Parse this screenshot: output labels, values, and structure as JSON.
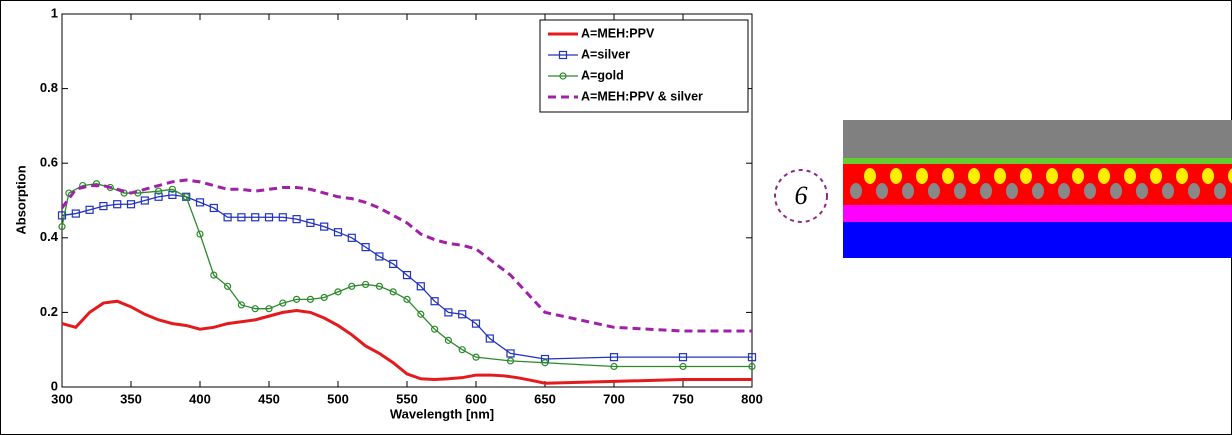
{
  "chart_data": {
    "type": "line",
    "xlabel": "Wavelength [nm]",
    "ylabel": "Absorption",
    "xlim": [
      300,
      800
    ],
    "ylim": [
      0,
      1
    ],
    "xticks": [
      300,
      350,
      400,
      450,
      500,
      550,
      600,
      650,
      700,
      750,
      800
    ],
    "yticks": [
      0,
      0.2,
      0.4,
      0.6,
      0.8,
      1
    ],
    "legend": "upper right",
    "series": [
      {
        "name": "A=MEH:PPV",
        "color": "#e41a1c",
        "style": "solid",
        "marker": "none",
        "x": [
          300,
          310,
          320,
          330,
          340,
          350,
          360,
          370,
          380,
          390,
          400,
          410,
          420,
          430,
          440,
          450,
          460,
          470,
          480,
          490,
          500,
          510,
          520,
          530,
          540,
          550,
          560,
          570,
          580,
          590,
          600,
          610,
          620,
          630,
          640,
          650,
          700,
          750,
          800
        ],
        "values": [
          0.17,
          0.16,
          0.2,
          0.225,
          0.23,
          0.215,
          0.195,
          0.18,
          0.17,
          0.165,
          0.155,
          0.16,
          0.17,
          0.175,
          0.18,
          0.19,
          0.2,
          0.205,
          0.2,
          0.185,
          0.165,
          0.14,
          0.11,
          0.09,
          0.065,
          0.035,
          0.022,
          0.02,
          0.022,
          0.025,
          0.032,
          0.032,
          0.03,
          0.025,
          0.018,
          0.01,
          0.015,
          0.02,
          0.02
        ]
      },
      {
        "name": "A=silver",
        "color": "#2233bb",
        "style": "solid",
        "marker": "square",
        "x": [
          300,
          310,
          320,
          330,
          340,
          350,
          360,
          370,
          380,
          390,
          400,
          410,
          420,
          430,
          440,
          450,
          460,
          470,
          480,
          490,
          500,
          510,
          520,
          530,
          540,
          550,
          560,
          570,
          580,
          590,
          600,
          610,
          625,
          650,
          700,
          750,
          800
        ],
        "values": [
          0.46,
          0.465,
          0.475,
          0.485,
          0.49,
          0.49,
          0.5,
          0.51,
          0.515,
          0.51,
          0.495,
          0.48,
          0.455,
          0.455,
          0.455,
          0.455,
          0.455,
          0.45,
          0.44,
          0.43,
          0.415,
          0.4,
          0.375,
          0.35,
          0.33,
          0.3,
          0.27,
          0.23,
          0.2,
          0.195,
          0.17,
          0.13,
          0.09,
          0.075,
          0.08,
          0.08,
          0.08
        ]
      },
      {
        "name": "A=gold",
        "color": "#2a8a2a",
        "style": "solid",
        "marker": "circle",
        "x": [
          300,
          305,
          315,
          325,
          335,
          345,
          355,
          370,
          380,
          390,
          400,
          410,
          420,
          430,
          440,
          450,
          460,
          470,
          480,
          490,
          500,
          510,
          520,
          530,
          540,
          550,
          560,
          570,
          580,
          590,
          600,
          625,
          650,
          700,
          750,
          800
        ],
        "values": [
          0.43,
          0.52,
          0.54,
          0.545,
          0.535,
          0.52,
          0.52,
          0.525,
          0.53,
          0.51,
          0.41,
          0.3,
          0.27,
          0.22,
          0.21,
          0.21,
          0.225,
          0.235,
          0.235,
          0.24,
          0.255,
          0.27,
          0.275,
          0.27,
          0.255,
          0.235,
          0.195,
          0.155,
          0.125,
          0.1,
          0.08,
          0.07,
          0.065,
          0.055,
          0.055,
          0.055
        ]
      },
      {
        "name": "A=MEH:PPV & silver",
        "color": "#a020a8",
        "style": "dashed",
        "marker": "none",
        "x": [
          300,
          310,
          320,
          330,
          340,
          350,
          360,
          370,
          380,
          390,
          400,
          410,
          420,
          430,
          440,
          450,
          460,
          470,
          480,
          490,
          500,
          510,
          520,
          530,
          540,
          550,
          560,
          570,
          580,
          590,
          600,
          625,
          650,
          700,
          750,
          800
        ],
        "values": [
          0.48,
          0.53,
          0.54,
          0.54,
          0.53,
          0.52,
          0.53,
          0.54,
          0.55,
          0.555,
          0.55,
          0.54,
          0.53,
          0.53,
          0.525,
          0.53,
          0.535,
          0.535,
          0.53,
          0.52,
          0.51,
          0.505,
          0.495,
          0.48,
          0.46,
          0.44,
          0.41,
          0.395,
          0.385,
          0.38,
          0.37,
          0.3,
          0.2,
          0.16,
          0.15,
          0.15
        ]
      }
    ]
  },
  "diagram": {
    "label": "6"
  }
}
